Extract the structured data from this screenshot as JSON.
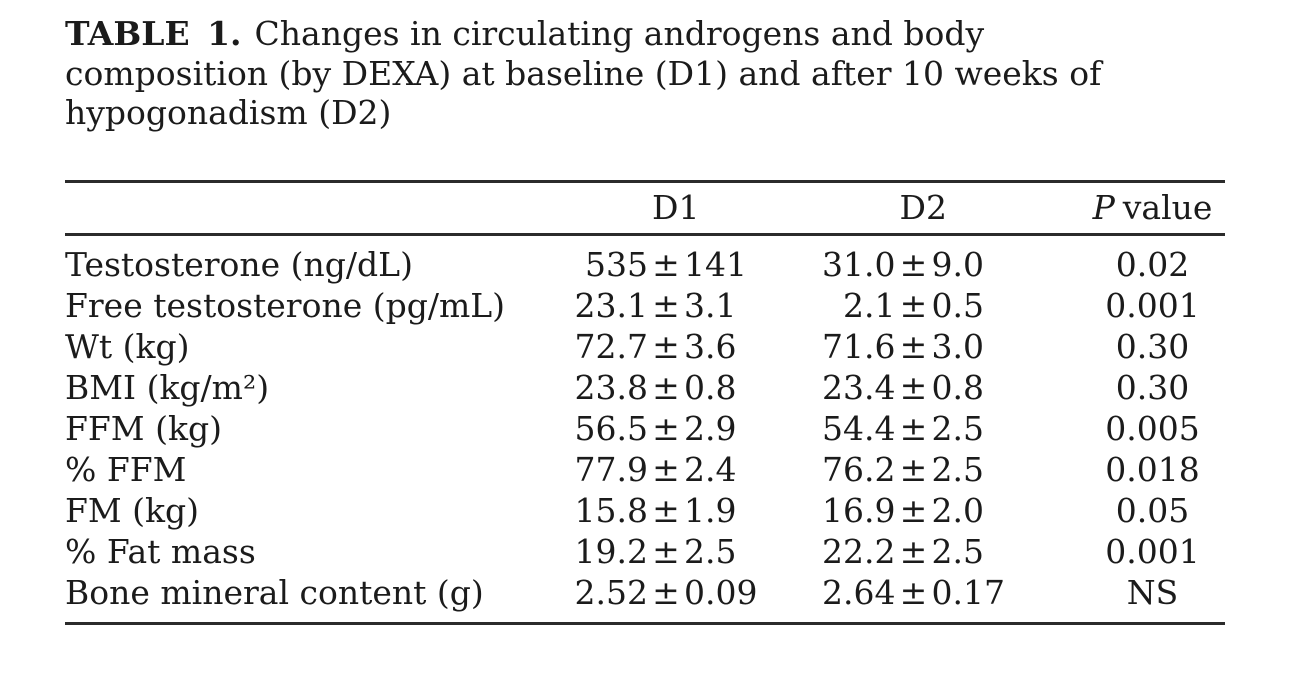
{
  "page": {
    "background": "#ffffff",
    "text_color": "#1b1b1b",
    "rule_color": "#2b2b2b"
  },
  "caption": {
    "label": "TABLE 1.",
    "lines": [
      "Changes in circulating androgens and body",
      "composition (by DEXA) at baseline (D1) and after 10 weeks of",
      "hypogonadism (D2)"
    ]
  },
  "table": {
    "plus_minus": "±",
    "header": {
      "label": "",
      "d1": "D1",
      "d2": "D2",
      "p_italic": "P",
      "p_rest": "value"
    },
    "rows": [
      {
        "label": "Testosterone (ng/dL)",
        "d1": "535 ± 141",
        "d2": "31.0 ± 9.0",
        "p": "0.02"
      },
      {
        "label": "Free testosterone (pg/mL)",
        "d1": "23.1 ± 3.1",
        "d2": "2.1 ± 0.5",
        "p": "0.001"
      },
      {
        "label": "Wt (kg)",
        "d1": "72.7 ± 3.6",
        "d2": "71.6 ± 3.0",
        "p": "0.30"
      },
      {
        "label": "BMI (kg/m²)",
        "d1": "23.8 ± 0.8",
        "d2": "23.4 ± 0.8",
        "p": "0.30"
      },
      {
        "label": "FFM (kg)",
        "d1": "56.5 ± 2.9",
        "d2": "54.4 ± 2.5",
        "p": "0.005"
      },
      {
        "label": "% FFM",
        "d1": "77.9 ± 2.4",
        "d2": "76.2 ± 2.5",
        "p": "0.018"
      },
      {
        "label": "FM (kg)",
        "d1": "15.8 ± 1.9",
        "d2": "16.9 ± 2.0",
        "p": "0.05"
      },
      {
        "label": "% Fat mass",
        "d1": "19.2 ± 2.5",
        "d2": "22.2 ± 2.5",
        "p": "0.001"
      },
      {
        "label": "Bone mineral content (g)",
        "d1": "2.52 ± 0.09",
        "d2": "2.64 ± 0.17",
        "p": "NS"
      }
    ]
  }
}
